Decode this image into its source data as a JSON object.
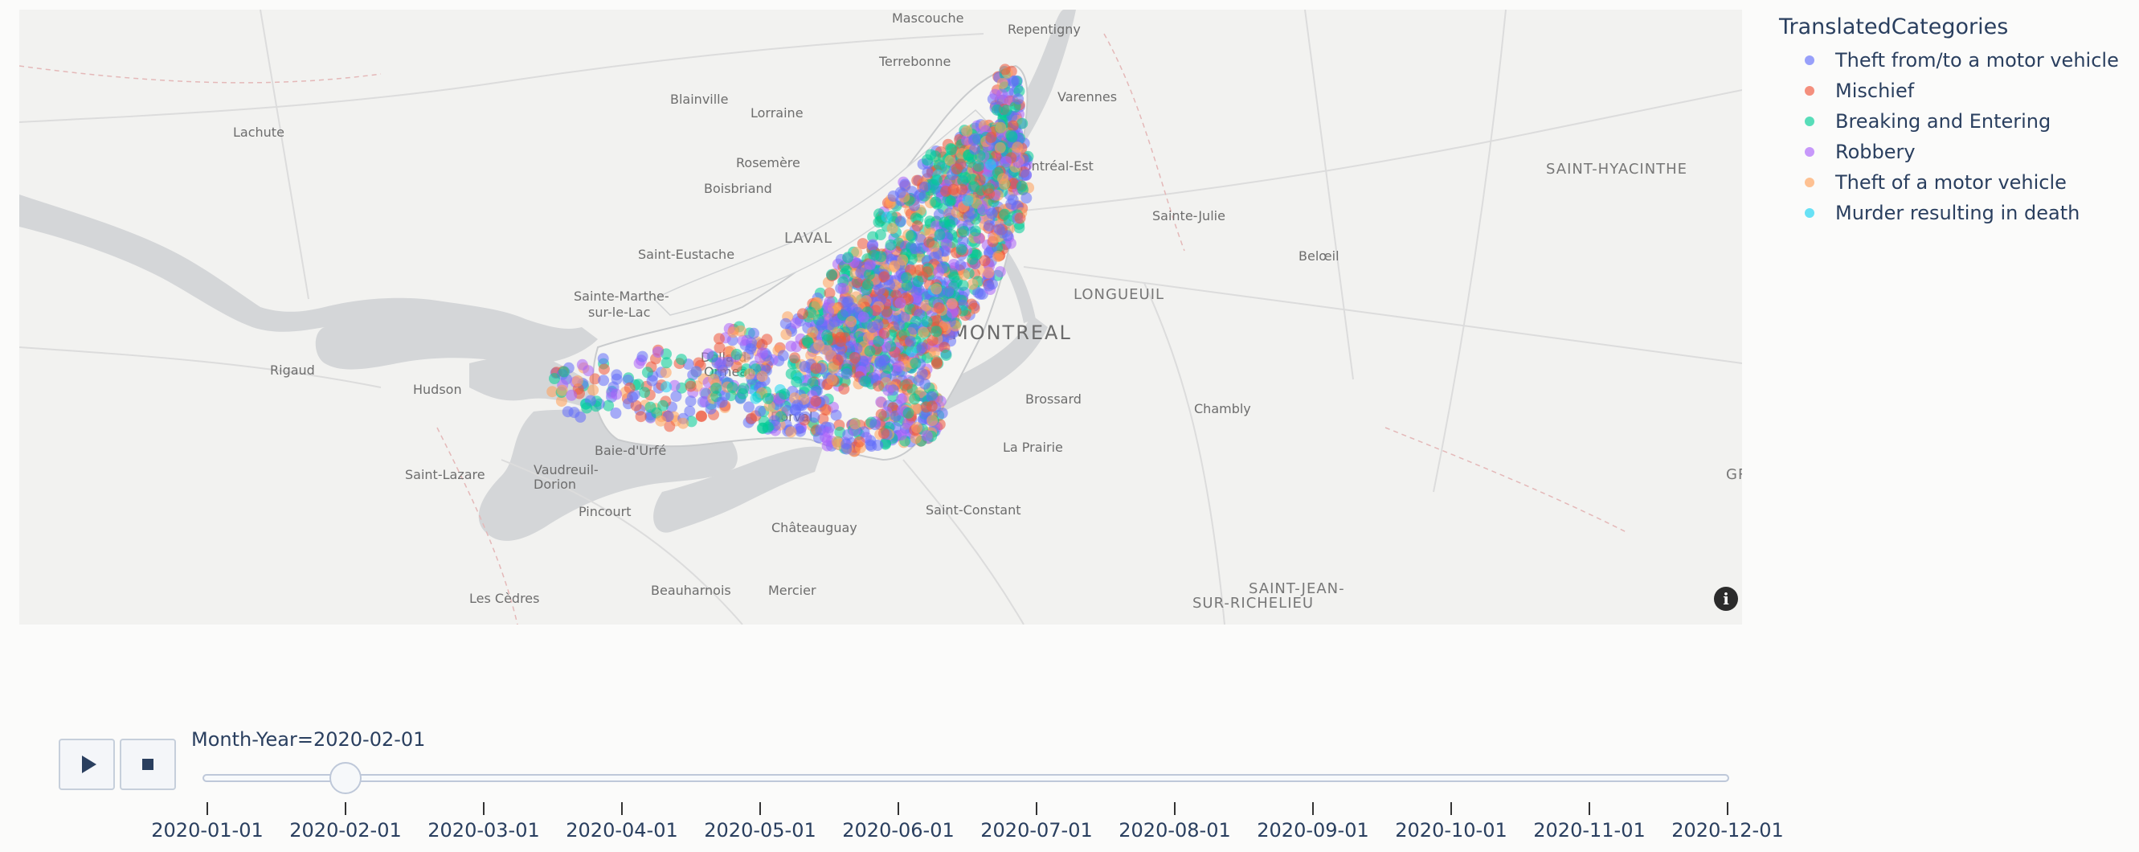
{
  "map": {
    "places": [
      {
        "name": "Mascouche",
        "cls": ""
      },
      {
        "name": "Repentigny",
        "cls": ""
      },
      {
        "name": "Terrebonne",
        "cls": ""
      },
      {
        "name": "Varennes",
        "cls": ""
      },
      {
        "name": "Blainville",
        "cls": ""
      },
      {
        "name": "Lorraine",
        "cls": ""
      },
      {
        "name": "Lachute",
        "cls": ""
      },
      {
        "name": "Rosemère",
        "cls": ""
      },
      {
        "name": "Montréal-Est",
        "cls": ""
      },
      {
        "name": "Boisbriand",
        "cls": ""
      },
      {
        "name": "SAINT-HYACINTHE",
        "cls": "major"
      },
      {
        "name": "Sainte-Julie",
        "cls": ""
      },
      {
        "name": "LAVAL",
        "cls": "major"
      },
      {
        "name": "Saint-Eustache",
        "cls": ""
      },
      {
        "name": "Belœil",
        "cls": ""
      },
      {
        "name": "Sainte-Marthe-",
        "cls": ""
      },
      {
        "name": "sur-le-Lac",
        "cls": ""
      },
      {
        "name": "LONGUEUIL",
        "cls": "major"
      },
      {
        "name": "MONTREAL",
        "cls": "city"
      },
      {
        "name": "Dollard-",
        "cls": ""
      },
      {
        "name": "Ormeaux",
        "cls": ""
      },
      {
        "name": "Rigaud",
        "cls": ""
      },
      {
        "name": "Hudson",
        "cls": ""
      },
      {
        "name": "Brossard",
        "cls": ""
      },
      {
        "name": "Dorval",
        "cls": ""
      },
      {
        "name": "Chambly",
        "cls": ""
      },
      {
        "name": "Baie-d'Urfé",
        "cls": ""
      },
      {
        "name": "La Prairie",
        "cls": ""
      },
      {
        "name": "Saint-Lazare",
        "cls": ""
      },
      {
        "name": "Vaudreuil-",
        "cls": ""
      },
      {
        "name": "Dorion",
        "cls": ""
      },
      {
        "name": "GRA",
        "cls": "major"
      },
      {
        "name": "Saint-Constant",
        "cls": ""
      },
      {
        "name": "Pincourt",
        "cls": ""
      },
      {
        "name": "Châteauguay",
        "cls": ""
      },
      {
        "name": "Beauharnois",
        "cls": ""
      },
      {
        "name": "Mercier",
        "cls": ""
      },
      {
        "name": "Les Cèdres",
        "cls": ""
      },
      {
        "name": "SAINT-JEAN-",
        "cls": "major"
      },
      {
        "name": "SUR-RICHELIEU",
        "cls": "major"
      }
    ],
    "info_icon": "i"
  },
  "legend": {
    "title": "TranslatedCategories",
    "items": [
      {
        "label": "Theft from/to a motor vehicle",
        "color": "#636efa"
      },
      {
        "label": "Mischief",
        "color": "#ef553b"
      },
      {
        "label": "Breaking and Entering",
        "color": "#00cc96"
      },
      {
        "label": "Robbery",
        "color": "#ab63fa"
      },
      {
        "label": "Theft of a motor vehicle",
        "color": "#ffa15a"
      },
      {
        "label": "Murder resulting in death",
        "color": "#19d3f3"
      }
    ]
  },
  "slider": {
    "current_label": "Month-Year=2020-02-01",
    "selected_index": 1,
    "ticks": [
      "2020-01-01",
      "2020-02-01",
      "2020-03-01",
      "2020-04-01",
      "2020-05-01",
      "2020-06-01",
      "2020-07-01",
      "2020-08-01",
      "2020-09-01",
      "2020-10-01",
      "2020-11-01",
      "2020-12-01"
    ]
  },
  "controls": {
    "play_icon": "play-icon",
    "stop_icon": "stop-icon"
  }
}
